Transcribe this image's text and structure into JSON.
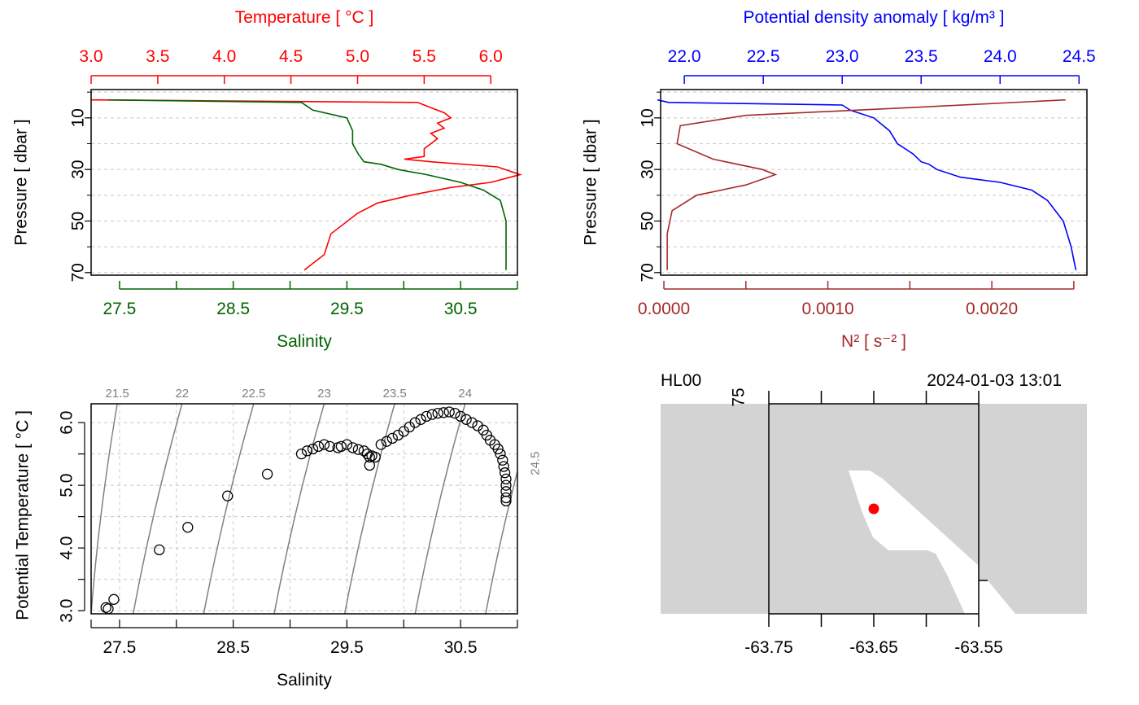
{
  "chart_data": [
    {
      "type": "line",
      "panel": "T-S profile",
      "ylabel": "Pressure [ dbar ]",
      "y_ticks": [
        "10",
        "30",
        "50",
        "70"
      ],
      "ylim": [
        71,
        -1
      ],
      "top_axis": {
        "label": "Temperature [ °C ]",
        "ticks": [
          "3.0",
          "3.5",
          "4.0",
          "4.5",
          "5.0",
          "5.5",
          "6.0"
        ],
        "range": [
          3.0,
          6.2
        ],
        "color": "#ff0000"
      },
      "bottom_axis": {
        "label": "Salinity",
        "ticks": [
          "27.5",
          "28.5",
          "29.5",
          "30.5"
        ],
        "range": [
          27.25,
          31.0
        ],
        "color": "#006400"
      },
      "grid": true,
      "series": [
        {
          "color": "#ff0000",
          "axis": "top",
          "x": [
            3.0,
            5.45,
            5.55,
            5.65,
            5.7,
            5.6,
            5.65,
            5.55,
            5.6,
            5.55,
            5.5,
            5.5,
            5.35,
            5.55,
            6.05,
            6.22,
            6.0,
            5.7,
            5.4,
            5.15,
            5.0,
            4.8,
            4.75,
            4.6
          ],
          "y": [
            3,
            4,
            6,
            8,
            10,
            12,
            14,
            16,
            18,
            20,
            22,
            25,
            26,
            27,
            29,
            32,
            35,
            37,
            40,
            43,
            47,
            55,
            63,
            69
          ]
        },
        {
          "color": "#006400",
          "axis": "bottom",
          "x": [
            27.4,
            29.1,
            29.2,
            29.5,
            29.55,
            29.55,
            29.6,
            29.65,
            29.8,
            29.95,
            30.2,
            30.5,
            30.7,
            30.85,
            30.9,
            30.9
          ],
          "y": [
            3,
            4,
            7,
            10,
            15,
            20,
            24,
            27,
            28,
            30,
            32,
            35,
            38,
            42,
            50,
            69
          ]
        }
      ]
    },
    {
      "type": "line",
      "panel": "density and stability profile",
      "ylabel": "Pressure [ dbar ]",
      "y_ticks": [
        "10",
        "30",
        "50",
        "70"
      ],
      "ylim": [
        71,
        -1
      ],
      "top_axis": {
        "label": "Potential density anomaly [ kg/m³ ]",
        "ticks": [
          "22.0",
          "22.5",
          "23.0",
          "23.5",
          "24.0",
          "24.5"
        ],
        "range": [
          21.85,
          24.55
        ],
        "color": "#0000ff"
      },
      "bottom_axis": {
        "label": "N² [ s⁻² ]",
        "ticks": [
          "0.0000",
          "0.0010",
          "0.0020"
        ],
        "range": [
          -2e-05,
          0.00258
        ],
        "color": "#a52a2a"
      },
      "grid": true,
      "series": [
        {
          "color": "#0000ff",
          "axis": "top",
          "x": [
            21.83,
            21.9,
            23.0,
            23.05,
            23.2,
            23.3,
            23.35,
            23.45,
            23.5,
            23.55,
            23.6,
            23.75,
            24.0,
            24.2,
            24.3,
            24.4,
            24.45,
            24.48
          ],
          "y": [
            3,
            4,
            5,
            7,
            10,
            15,
            20,
            24,
            27,
            28,
            30,
            33,
            35,
            38,
            42,
            50,
            60,
            69
          ]
        },
        {
          "color": "#a52a2a",
          "axis": "bottom",
          "x": [
            0.00245,
            0.0015,
            0.0005,
            0.0001,
            8e-05,
            0.0003,
            0.0006,
            0.00068,
            0.0005,
            0.0002,
            5e-05,
            2e-05,
            2e-05
          ],
          "y": [
            3,
            6,
            9,
            13,
            20,
            26,
            30,
            32,
            36,
            40,
            46,
            55,
            69
          ]
        }
      ]
    },
    {
      "type": "scatter",
      "panel": "T-S diagram",
      "xlabel": "Salinity",
      "ylabel": "Potential Temperature [ °C ]",
      "x_ticks": [
        "27.5",
        "28.5",
        "29.5",
        "30.5"
      ],
      "y_ticks": [
        "3.0",
        "4.0",
        "5.0",
        "6.0"
      ],
      "xlim": [
        27.25,
        31.0
      ],
      "ylim": [
        2.95,
        6.3
      ],
      "grid": true,
      "isopycnal_labels": [
        "21.5",
        "22",
        "22.5",
        "23",
        "23.5",
        "24",
        "24.5"
      ],
      "isopycnals": [
        {
          "label": "21.5",
          "x_bottom": 27.25,
          "x_top": 27.48
        },
        {
          "label": "22",
          "x_bottom": 27.62,
          "x_top": 28.05
        },
        {
          "label": "22.5",
          "x_bottom": 28.24,
          "x_top": 28.68
        },
        {
          "label": "23",
          "x_bottom": 28.86,
          "x_top": 29.3
        },
        {
          "label": "23.5",
          "x_bottom": 29.48,
          "x_top": 29.92
        },
        {
          "label": "24",
          "x_bottom": 30.1,
          "x_top": 30.54
        },
        {
          "label": "24.5",
          "x_bottom": 30.72,
          "x_top": 31.16
        }
      ],
      "points": [
        [
          27.4,
          3.03
        ],
        [
          27.38,
          3.05
        ],
        [
          27.45,
          3.18
        ],
        [
          27.85,
          3.97
        ],
        [
          28.1,
          4.33
        ],
        [
          28.45,
          4.83
        ],
        [
          28.8,
          5.18
        ],
        [
          29.1,
          5.5
        ],
        [
          29.15,
          5.55
        ],
        [
          29.2,
          5.58
        ],
        [
          29.25,
          5.62
        ],
        [
          29.3,
          5.65
        ],
        [
          29.35,
          5.62
        ],
        [
          29.42,
          5.6
        ],
        [
          29.45,
          5.62
        ],
        [
          29.5,
          5.65
        ],
        [
          29.55,
          5.6
        ],
        [
          29.6,
          5.57
        ],
        [
          29.65,
          5.55
        ],
        [
          29.68,
          5.5
        ],
        [
          29.7,
          5.45
        ],
        [
          29.72,
          5.47
        ],
        [
          29.75,
          5.45
        ],
        [
          29.7,
          5.32
        ],
        [
          29.8,
          5.65
        ],
        [
          29.85,
          5.7
        ],
        [
          29.9,
          5.75
        ],
        [
          29.95,
          5.8
        ],
        [
          30.0,
          5.86
        ],
        [
          30.05,
          5.93
        ],
        [
          30.1,
          6.0
        ],
        [
          30.15,
          6.05
        ],
        [
          30.2,
          6.1
        ],
        [
          30.25,
          6.13
        ],
        [
          30.3,
          6.15
        ],
        [
          30.35,
          6.16
        ],
        [
          30.4,
          6.17
        ],
        [
          30.45,
          6.15
        ],
        [
          30.5,
          6.1
        ],
        [
          30.55,
          6.05
        ],
        [
          30.6,
          6.0
        ],
        [
          30.65,
          5.95
        ],
        [
          30.7,
          5.88
        ],
        [
          30.73,
          5.8
        ],
        [
          30.76,
          5.72
        ],
        [
          30.8,
          5.65
        ],
        [
          30.83,
          5.58
        ],
        [
          30.85,
          5.5
        ],
        [
          30.87,
          5.4
        ],
        [
          30.88,
          5.3
        ],
        [
          30.89,
          5.2
        ],
        [
          30.9,
          5.1
        ],
        [
          30.9,
          5.0
        ],
        [
          30.9,
          4.9
        ],
        [
          30.9,
          4.8
        ],
        [
          30.9,
          4.75
        ]
      ]
    },
    {
      "type": "map",
      "panel": "station map",
      "station_label": "HL00",
      "timestamp": "2024-01-03 13:01",
      "x_ticks": [
        "-63.75",
        "-63.65",
        "-63.55"
      ],
      "top_tick_fragment": "75",
      "station_marker": {
        "color": "#ff0000"
      }
    }
  ]
}
